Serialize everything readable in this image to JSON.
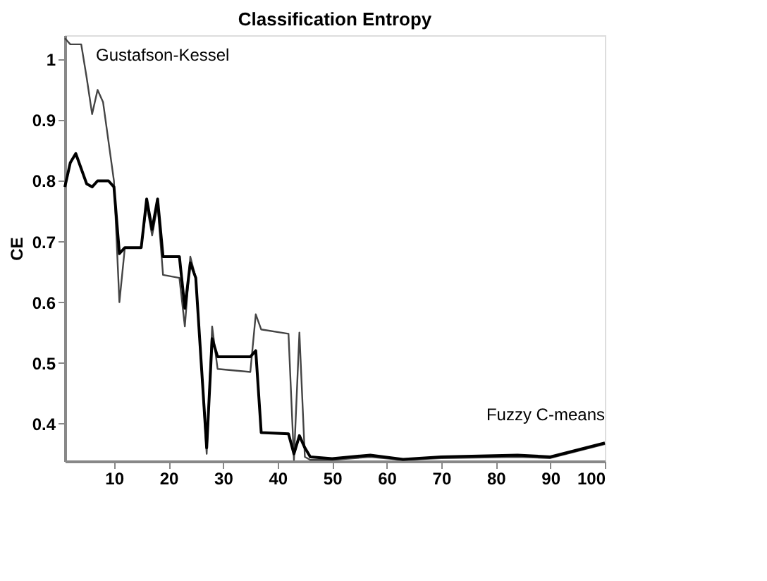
{
  "chart_data": {
    "type": "line",
    "title": "Classification Entropy",
    "ylabel": "CE",
    "xlim": [
      1,
      100
    ],
    "ylim": [
      0.338,
      1.04
    ],
    "xticks": [
      10,
      20,
      30,
      40,
      50,
      60,
      70,
      80,
      90,
      100
    ],
    "yticks": [
      0.4,
      0.5,
      0.6,
      0.7,
      0.8,
      0.9,
      1
    ],
    "grid": false,
    "marker": "none",
    "line_style": "solid",
    "series": [
      {
        "name": "Gustafson-Kessel",
        "color": "#444444",
        "x": [
          1,
          2,
          4,
          5,
          6,
          7,
          8,
          10,
          11,
          12,
          15,
          16,
          17,
          18,
          19,
          22,
          23,
          24,
          25,
          26,
          27,
          28,
          29,
          35,
          36,
          37,
          42,
          43,
          44,
          45,
          46,
          50,
          57,
          63,
          70,
          84,
          90,
          100
        ],
        "values": [
          1.035,
          1.025,
          1.025,
          0.97,
          0.91,
          0.95,
          0.93,
          0.8,
          0.6,
          0.69,
          0.69,
          0.76,
          0.71,
          0.76,
          0.645,
          0.64,
          0.56,
          0.675,
          0.64,
          0.5,
          0.35,
          0.56,
          0.49,
          0.485,
          0.58,
          0.555,
          0.548,
          0.34,
          0.55,
          0.345,
          0.34,
          0.34,
          0.345,
          0.34,
          0.343,
          0.345,
          0.343,
          0.366
        ]
      },
      {
        "name": "Fuzzy C-means",
        "color": "#000000",
        "x": [
          1,
          2,
          3,
          4,
          5,
          6,
          7,
          9,
          10,
          11,
          12,
          15,
          16,
          17,
          18,
          19,
          22,
          23,
          24,
          25,
          26,
          27,
          28,
          29,
          35,
          36,
          37,
          42,
          43,
          44,
          45,
          46,
          50,
          57,
          63,
          70,
          84,
          90,
          100
        ],
        "values": [
          0.79,
          0.83,
          0.845,
          0.82,
          0.795,
          0.79,
          0.8,
          0.8,
          0.79,
          0.68,
          0.69,
          0.69,
          0.77,
          0.72,
          0.77,
          0.675,
          0.675,
          0.59,
          0.665,
          0.64,
          0.5,
          0.36,
          0.54,
          0.51,
          0.51,
          0.52,
          0.385,
          0.383,
          0.35,
          0.38,
          0.36,
          0.345,
          0.342,
          0.348,
          0.341,
          0.345,
          0.348,
          0.345,
          0.368
        ]
      }
    ]
  }
}
